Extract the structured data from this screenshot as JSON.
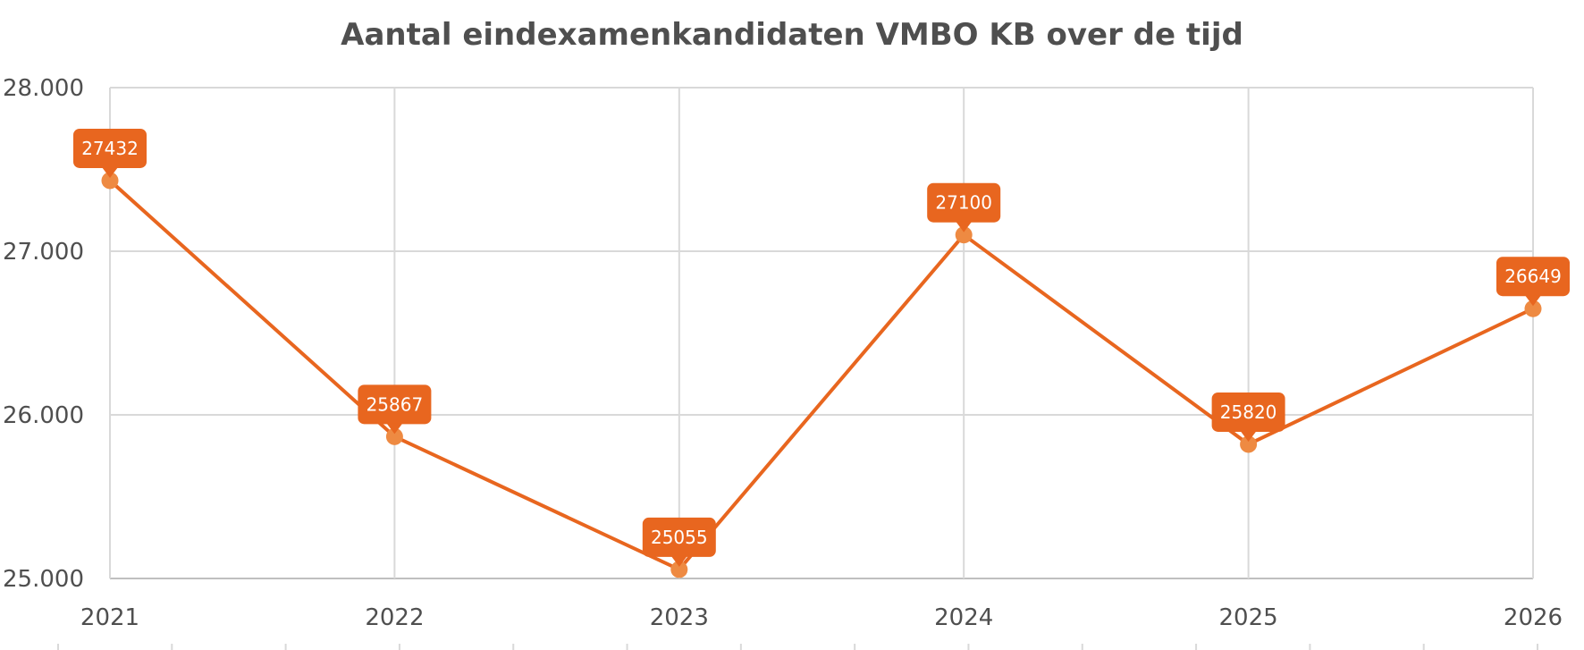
{
  "chart_data": {
    "type": "line",
    "title": "Aantal eindexamenkandidaten VMBO KB over de tijd",
    "xlabel": "",
    "ylabel": "",
    "x": [
      "2021",
      "2022",
      "2023",
      "2024",
      "2025",
      "2026"
    ],
    "series": [
      {
        "values": [
          27432,
          25867,
          25055,
          27100,
          25820,
          26649
        ],
        "color": "#e8661f"
      }
    ],
    "data_labels": [
      "27432",
      "25867",
      "25055",
      "27100",
      "25820",
      "26649"
    ],
    "ylim": [
      25000,
      28000
    ],
    "yticks": [
      25000,
      26000,
      27000,
      28000
    ],
    "ytick_labels": [
      "25.000",
      "26.000",
      "27.000",
      "28.000"
    ],
    "grid": true,
    "legend": "none",
    "colors": {
      "line": "#e8661f",
      "marker": "#ee8a42",
      "label_bg": "#e8661f",
      "label_text": "#ffffff",
      "grid": "#d9d9d9",
      "text": "#4f4f4f"
    }
  }
}
